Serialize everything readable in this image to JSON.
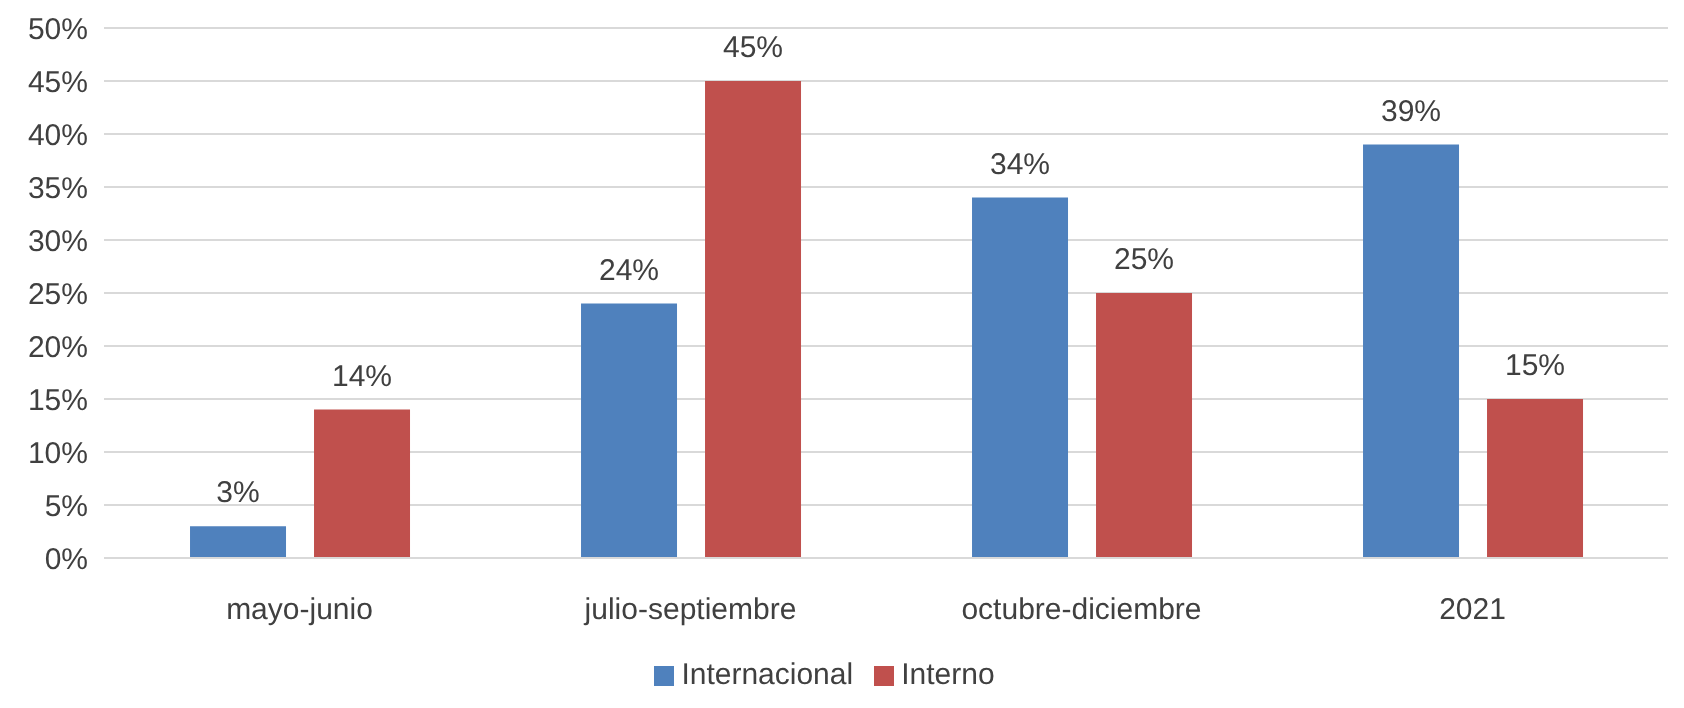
{
  "chart_data": {
    "type": "bar",
    "categories": [
      "mayo-junio",
      "julio-septiembre",
      "octubre-diciembre",
      "2021"
    ],
    "series": [
      {
        "name": "Internacional",
        "color": "#4f81bd",
        "values": [
          3,
          24,
          34,
          39
        ],
        "value_labels": [
          "3%",
          "24%",
          "34%",
          "39%"
        ]
      },
      {
        "name": "Interno",
        "color": "#c0504d",
        "values": [
          14,
          45,
          25,
          15
        ],
        "value_labels": [
          "14%",
          "45%",
          "25%",
          "15%"
        ]
      }
    ],
    "ylim": [
      0,
      50
    ],
    "yticks": [
      {
        "value": 0,
        "label": "0%"
      },
      {
        "value": 5,
        "label": "5%"
      },
      {
        "value": 10,
        "label": "10%"
      },
      {
        "value": 15,
        "label": "15%"
      },
      {
        "value": 20,
        "label": "20%"
      },
      {
        "value": 25,
        "label": "25%"
      },
      {
        "value": 30,
        "label": "30%"
      },
      {
        "value": 35,
        "label": "35%"
      },
      {
        "value": 40,
        "label": "40%"
      },
      {
        "value": 45,
        "label": "45%"
      },
      {
        "value": 50,
        "label": "50%"
      }
    ],
    "grid": "y",
    "legend": "bottom"
  }
}
